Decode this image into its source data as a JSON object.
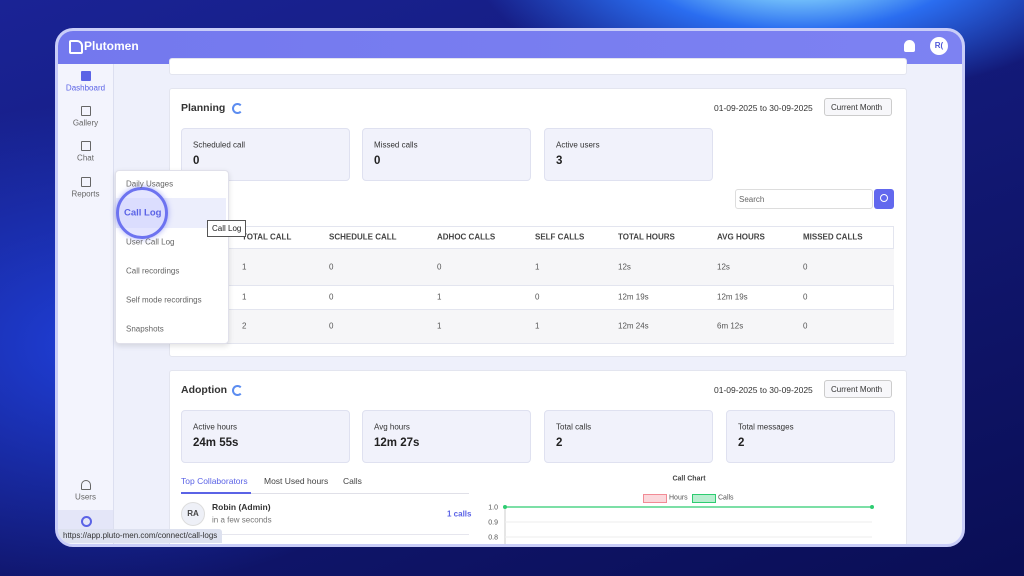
{
  "app": {
    "brand": "Plutomen",
    "avatar": "R("
  },
  "sidebar": {
    "items": [
      "Dashboard",
      "Gallery",
      "Chat",
      "Reports"
    ],
    "bottom": [
      "Users"
    ]
  },
  "planning": {
    "title": "Planning",
    "date_range": "01-09-2025 to 30-09-2025",
    "period": "Current Month",
    "stats": [
      {
        "label": "Scheduled call",
        "value": 0
      },
      {
        "label": "Missed calls",
        "value": 0
      },
      {
        "label": "Active users",
        "value": 3
      }
    ],
    "search_placeholder": "Search",
    "table": {
      "headers": [
        "TOTAL CALL",
        "SCHEDULE CALL",
        "ADHOC CALLS",
        "SELF CALLS",
        "TOTAL HOURS",
        "AVG HOURS",
        "MISSED CALLS"
      ],
      "rows": [
        [
          1,
          0,
          0,
          1,
          "12s",
          "12s",
          0
        ],
        [
          1,
          0,
          1,
          0,
          "12m 19s",
          "12m 19s",
          0
        ],
        [
          2,
          0,
          1,
          1,
          "12m 24s",
          "6m 12s",
          0
        ]
      ]
    }
  },
  "menu": {
    "items": [
      "Daily Usages",
      "Call Log",
      "User Call Log",
      "Call recordings",
      "Self mode recordings",
      "Snapshots"
    ],
    "tooltip": "Call Log"
  },
  "adoption": {
    "title": "Adoption",
    "date_range": "01-09-2025 to 30-09-2025",
    "period": "Current Month",
    "stats": [
      {
        "label": "Active hours",
        "value": "24m 55s"
      },
      {
        "label": "Avg hours",
        "value": "12m 27s"
      },
      {
        "label": "Total calls",
        "value": 2
      },
      {
        "label": "Total messages",
        "value": 2
      }
    ],
    "tabs": [
      "Top Collaborators",
      "Most Used hours",
      "Calls"
    ],
    "collaborators": [
      {
        "initials": "RA",
        "name": "Robin (Admin)",
        "time": "in a few seconds",
        "calls": "1 calls"
      }
    ],
    "call_chart": {
      "title": "Call Chart",
      "legend": [
        {
          "name": "Hours",
          "color": "#f28b95"
        },
        {
          "name": "Calls",
          "color": "#2ecc71"
        }
      ],
      "yticks": [
        {
          "value": 1,
          "label": "1.0"
        },
        {
          "value": 0.9,
          "label": "0.9"
        },
        {
          "value": 0.8,
          "label": "0.8"
        }
      ],
      "calls": [
        1,
        1
      ]
    }
  },
  "status_url": "https://app.pluto-men.com/connect/call-logs"
}
